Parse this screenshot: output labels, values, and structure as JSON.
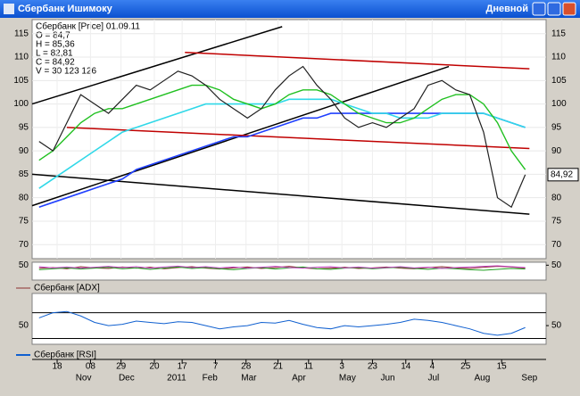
{
  "window": {
    "title": "Сбербанк Ишимоку",
    "mode": "Дневной"
  },
  "chart_data": [
    {
      "type": "line",
      "legend_lines": [
        "Сбербанк [Price] 01.09.11",
        "O = 84,7",
        "H = 85,36",
        "L = 82,81",
        "C = 84,92",
        "V = 30 123 126"
      ],
      "last_label": "84,92",
      "last_value": 84.92,
      "xlim": [
        -0.5,
        36.5
      ],
      "ylim": [
        67,
        118
      ],
      "yticks": [
        70,
        75,
        80,
        85,
        90,
        95,
        100,
        105,
        110,
        115
      ],
      "grid": true,
      "xticks": [
        {
          "value": 1.3,
          "label": "18"
        },
        {
          "value": 3.7,
          "label": "08"
        },
        {
          "value": 5.9,
          "label": "29"
        },
        {
          "value": 8.3,
          "label": "20"
        },
        {
          "value": 10.3,
          "label": "17"
        },
        {
          "value": 12.7,
          "label": "7"
        },
        {
          "value": 14.9,
          "label": "28"
        },
        {
          "value": 17.2,
          "label": "21"
        },
        {
          "value": 19.4,
          "label": "11"
        },
        {
          "value": 21.8,
          "label": "3"
        },
        {
          "value": 24.0,
          "label": "23"
        },
        {
          "value": 26.4,
          "label": "14"
        },
        {
          "value": 28.3,
          "label": "4"
        },
        {
          "value": 30.7,
          "label": "25"
        },
        {
          "value": 33.3,
          "label": "15"
        }
      ],
      "month_ticks": [
        {
          "value": 3.2,
          "label": "Nov"
        },
        {
          "value": 6.3,
          "label": "Dec"
        },
        {
          "value": 9.9,
          "label": "2011"
        },
        {
          "value": 12.3,
          "label": "Feb"
        },
        {
          "value": 15.1,
          "label": "Mar"
        },
        {
          "value": 18.7,
          "label": "Apr"
        },
        {
          "value": 22.2,
          "label": "May"
        },
        {
          "value": 25.1,
          "label": "Jun"
        },
        {
          "value": 28.4,
          "label": "Jul"
        },
        {
          "value": 31.9,
          "label": "Aug"
        },
        {
          "value": 35.3,
          "label": "Sep"
        }
      ],
      "series": [
        {
          "color": "#2040ff",
          "width": 1.6,
          "values": [
            78,
            79,
            80,
            81,
            82,
            83,
            84,
            86,
            87,
            88,
            89,
            90,
            91,
            92,
            93,
            93,
            94,
            95,
            96,
            97,
            97,
            98,
            98,
            98,
            98,
            98,
            98,
            98,
            98,
            98,
            98,
            98,
            98,
            97,
            96,
            95
          ]
        },
        {
          "color": "#30d8e8",
          "width": 1.6,
          "values": [
            82,
            84,
            86,
            88,
            90,
            92,
            94,
            95,
            96,
            97,
            98,
            99,
            100,
            100,
            100,
            100,
            100,
            100,
            101,
            101,
            101,
            101,
            100,
            99,
            98,
            98,
            97,
            97,
            97,
            98,
            98,
            98,
            98,
            97,
            96,
            95
          ]
        },
        {
          "color": "#20c020",
          "width": 1.4,
          "values": [
            88,
            90,
            93,
            96,
            98,
            99,
            99,
            100,
            101,
            102,
            103,
            104,
            104,
            103,
            101,
            100,
            99,
            100,
            102,
            103,
            103,
            102,
            100,
            98,
            97,
            96,
            96,
            97,
            99,
            101,
            102,
            102,
            100,
            96,
            90,
            86
          ]
        },
        {
          "color": "#202020",
          "width": 1.2,
          "values": [
            92,
            90,
            96,
            102,
            100,
            98,
            101,
            104,
            103,
            105,
            107,
            106,
            104,
            101,
            99,
            97,
            99,
            103,
            106,
            108,
            104,
            101,
            97,
            95,
            96,
            95,
            97,
            99,
            104,
            105,
            103,
            102,
            94,
            80,
            78,
            84.92
          ]
        }
      ],
      "trendlines": [
        {
          "color": "#000000",
          "from": [
            -0.5,
            100
          ],
          "to": [
            17.5,
            116.5
          ]
        },
        {
          "color": "#000000",
          "from": [
            -0.5,
            78.3
          ],
          "to": [
            29.5,
            108
          ]
        },
        {
          "color": "#000000",
          "from": [
            -0.5,
            85
          ],
          "to": [
            35.3,
            76.5
          ]
        },
        {
          "color": "#c00000",
          "from": [
            10.5,
            111
          ],
          "to": [
            35.3,
            107.5
          ]
        },
        {
          "color": "#c00000",
          "from": [
            2,
            95
          ],
          "to": [
            35.3,
            90.5
          ]
        }
      ]
    },
    {
      "type": "line",
      "legend": "Сбербанк [ADX]",
      "xlim": [
        -0.5,
        36.5
      ],
      "ylim": [
        0,
        60
      ],
      "yticks": [
        50
      ],
      "series": [
        {
          "color": "#8b3030",
          "values": [
            40,
            42,
            38,
            45,
            41,
            39,
            44,
            40,
            43,
            38,
            42,
            45,
            40,
            37,
            41,
            44,
            39,
            42,
            46,
            41,
            38,
            40,
            43,
            39,
            41,
            44,
            40,
            38,
            42,
            45,
            41,
            39,
            43,
            46,
            44,
            40
          ]
        },
        {
          "color": "#20a020",
          "values": [
            35,
            38,
            41,
            37,
            40,
            43,
            38,
            41,
            36,
            40,
            44,
            39,
            42,
            38,
            35,
            39,
            42,
            37,
            41,
            44,
            38,
            36,
            40,
            42,
            38,
            41,
            43,
            39,
            36,
            40,
            38,
            35,
            33,
            36,
            39,
            37
          ]
        },
        {
          "color": "#c040c0",
          "values": [
            45,
            41,
            44,
            40,
            43,
            46,
            42,
            45,
            40,
            44,
            47,
            42,
            45,
            41,
            44,
            40,
            43,
            46,
            42,
            40,
            43,
            45,
            41,
            44,
            40,
            42,
            45,
            41,
            43,
            39,
            42,
            44,
            46,
            48,
            45,
            42
          ]
        }
      ]
    },
    {
      "type": "line",
      "legend": "Сбербанк [RSI]",
      "xlim": [
        -0.5,
        36.5
      ],
      "ylim": [
        21,
        100
      ],
      "yticks": [
        50
      ],
      "levels": [
        30,
        70
      ],
      "series": [
        {
          "color": "#1060d0",
          "values": [
            62,
            70,
            72,
            65,
            55,
            50,
            52,
            57,
            55,
            53,
            56,
            55,
            50,
            45,
            48,
            50,
            55,
            54,
            58,
            52,
            47,
            45,
            50,
            48,
            50,
            52,
            55,
            60,
            58,
            55,
            50,
            45,
            38,
            35,
            38,
            47
          ]
        }
      ]
    }
  ]
}
